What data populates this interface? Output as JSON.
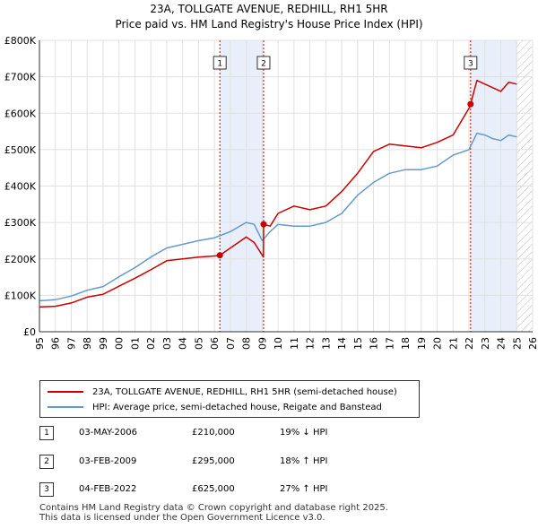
{
  "chart_data": {
    "type": "line",
    "title": "23A, TOLLGATE AVENUE, REDHILL, RH1 5HR",
    "subtitle": "Price paid vs. HM Land Registry's House Price Index (HPI)",
    "xlabel": "",
    "ylabel": "",
    "xlim": [
      1995,
      2026
    ],
    "ylim": [
      0,
      800000
    ],
    "x_ticks": [
      "1995",
      "1996",
      "1997",
      "1998",
      "1999",
      "2000",
      "2001",
      "2002",
      "2003",
      "2004",
      "2005",
      "2006",
      "2007",
      "2008",
      "2009",
      "2010",
      "2011",
      "2012",
      "2013",
      "2014",
      "2015",
      "2016",
      "2017",
      "2018",
      "2019",
      "2020",
      "2021",
      "2022",
      "2023",
      "2024",
      "2025",
      "2026"
    ],
    "y_ticks": [
      "£0",
      "£100K",
      "£200K",
      "£300K",
      "£400K",
      "£500K",
      "£600K",
      "£700K",
      "£800K"
    ],
    "grid": true,
    "series": [
      {
        "name": "23A, TOLLGATE AVENUE, REDHILL, RH1 5HR (semi-detached house)",
        "color": "#cc0000",
        "x": [
          1995,
          1996,
          1997,
          1998,
          1999,
          2000,
          2001,
          2002,
          2003,
          2004,
          2005,
          2006,
          2006.34,
          2007,
          2008,
          2008.5,
          2009.08,
          2009.09,
          2009.5,
          2010,
          2011,
          2012,
          2013,
          2014,
          2015,
          2016,
          2017,
          2018,
          2019,
          2020,
          2021,
          2022.09,
          2022.1,
          2022.5,
          2023,
          2023.5,
          2024,
          2024.5,
          2025
        ],
        "values": [
          68000,
          70000,
          79000,
          95000,
          103000,
          125000,
          147000,
          170000,
          195000,
          200000,
          205000,
          208000,
          210000,
          230000,
          260000,
          245000,
          205000,
          295000,
          290000,
          325000,
          345000,
          335000,
          345000,
          385000,
          435000,
          495000,
          515000,
          510000,
          505000,
          520000,
          540000,
          620000,
          625000,
          690000,
          680000,
          670000,
          660000,
          685000,
          680000
        ]
      },
      {
        "name": "HPI: Average price, semi-detached house, Reigate and Banstead",
        "color": "#6699cc",
        "x": [
          1995,
          1996,
          1997,
          1998,
          1999,
          2000,
          2001,
          2002,
          2003,
          2004,
          2005,
          2006,
          2007,
          2008,
          2008.5,
          2009,
          2009.5,
          2010,
          2011,
          2012,
          2013,
          2014,
          2015,
          2016,
          2017,
          2018,
          2019,
          2020,
          2021,
          2022,
          2022.5,
          2023,
          2023.5,
          2024,
          2024.5,
          2025
        ],
        "values": [
          85000,
          88000,
          98000,
          114000,
          124000,
          151000,
          176000,
          205000,
          230000,
          240000,
          250000,
          258000,
          275000,
          300000,
          295000,
          250000,
          275000,
          295000,
          290000,
          290000,
          300000,
          325000,
          375000,
          410000,
          435000,
          445000,
          445000,
          455000,
          485000,
          500000,
          545000,
          540000,
          530000,
          525000,
          540000,
          535000
        ]
      }
    ],
    "transactions": [
      {
        "label": "1",
        "x": 2006.34,
        "value": 210000
      },
      {
        "label": "2",
        "x": 2009.09,
        "value": 295000
      },
      {
        "label": "3",
        "x": 2022.1,
        "value": 625000
      }
    ],
    "shaded_periods": [
      [
        2006.34,
        2009.09
      ],
      [
        2022.1,
        2025.0
      ]
    ],
    "hatched_from": 2025.0
  },
  "legend": {
    "property": "23A, TOLLGATE AVENUE, REDHILL, RH1 5HR (semi-detached house)",
    "hpi": "HPI: Average price, semi-detached house, Reigate and Banstead"
  },
  "transactions_table": [
    {
      "num": "1",
      "date": "03-MAY-2006",
      "price": "£210,000",
      "hpi": "19% ↓ HPI"
    },
    {
      "num": "2",
      "date": "03-FEB-2009",
      "price": "£295,000",
      "hpi": "18% ↑ HPI"
    },
    {
      "num": "3",
      "date": "04-FEB-2022",
      "price": "£625,000",
      "hpi": "27% ↑ HPI"
    }
  ],
  "footer": {
    "line1": "Contains HM Land Registry data © Crown copyright and database right 2025.",
    "line2": "This data is licensed under the Open Government Licence v3.0."
  }
}
